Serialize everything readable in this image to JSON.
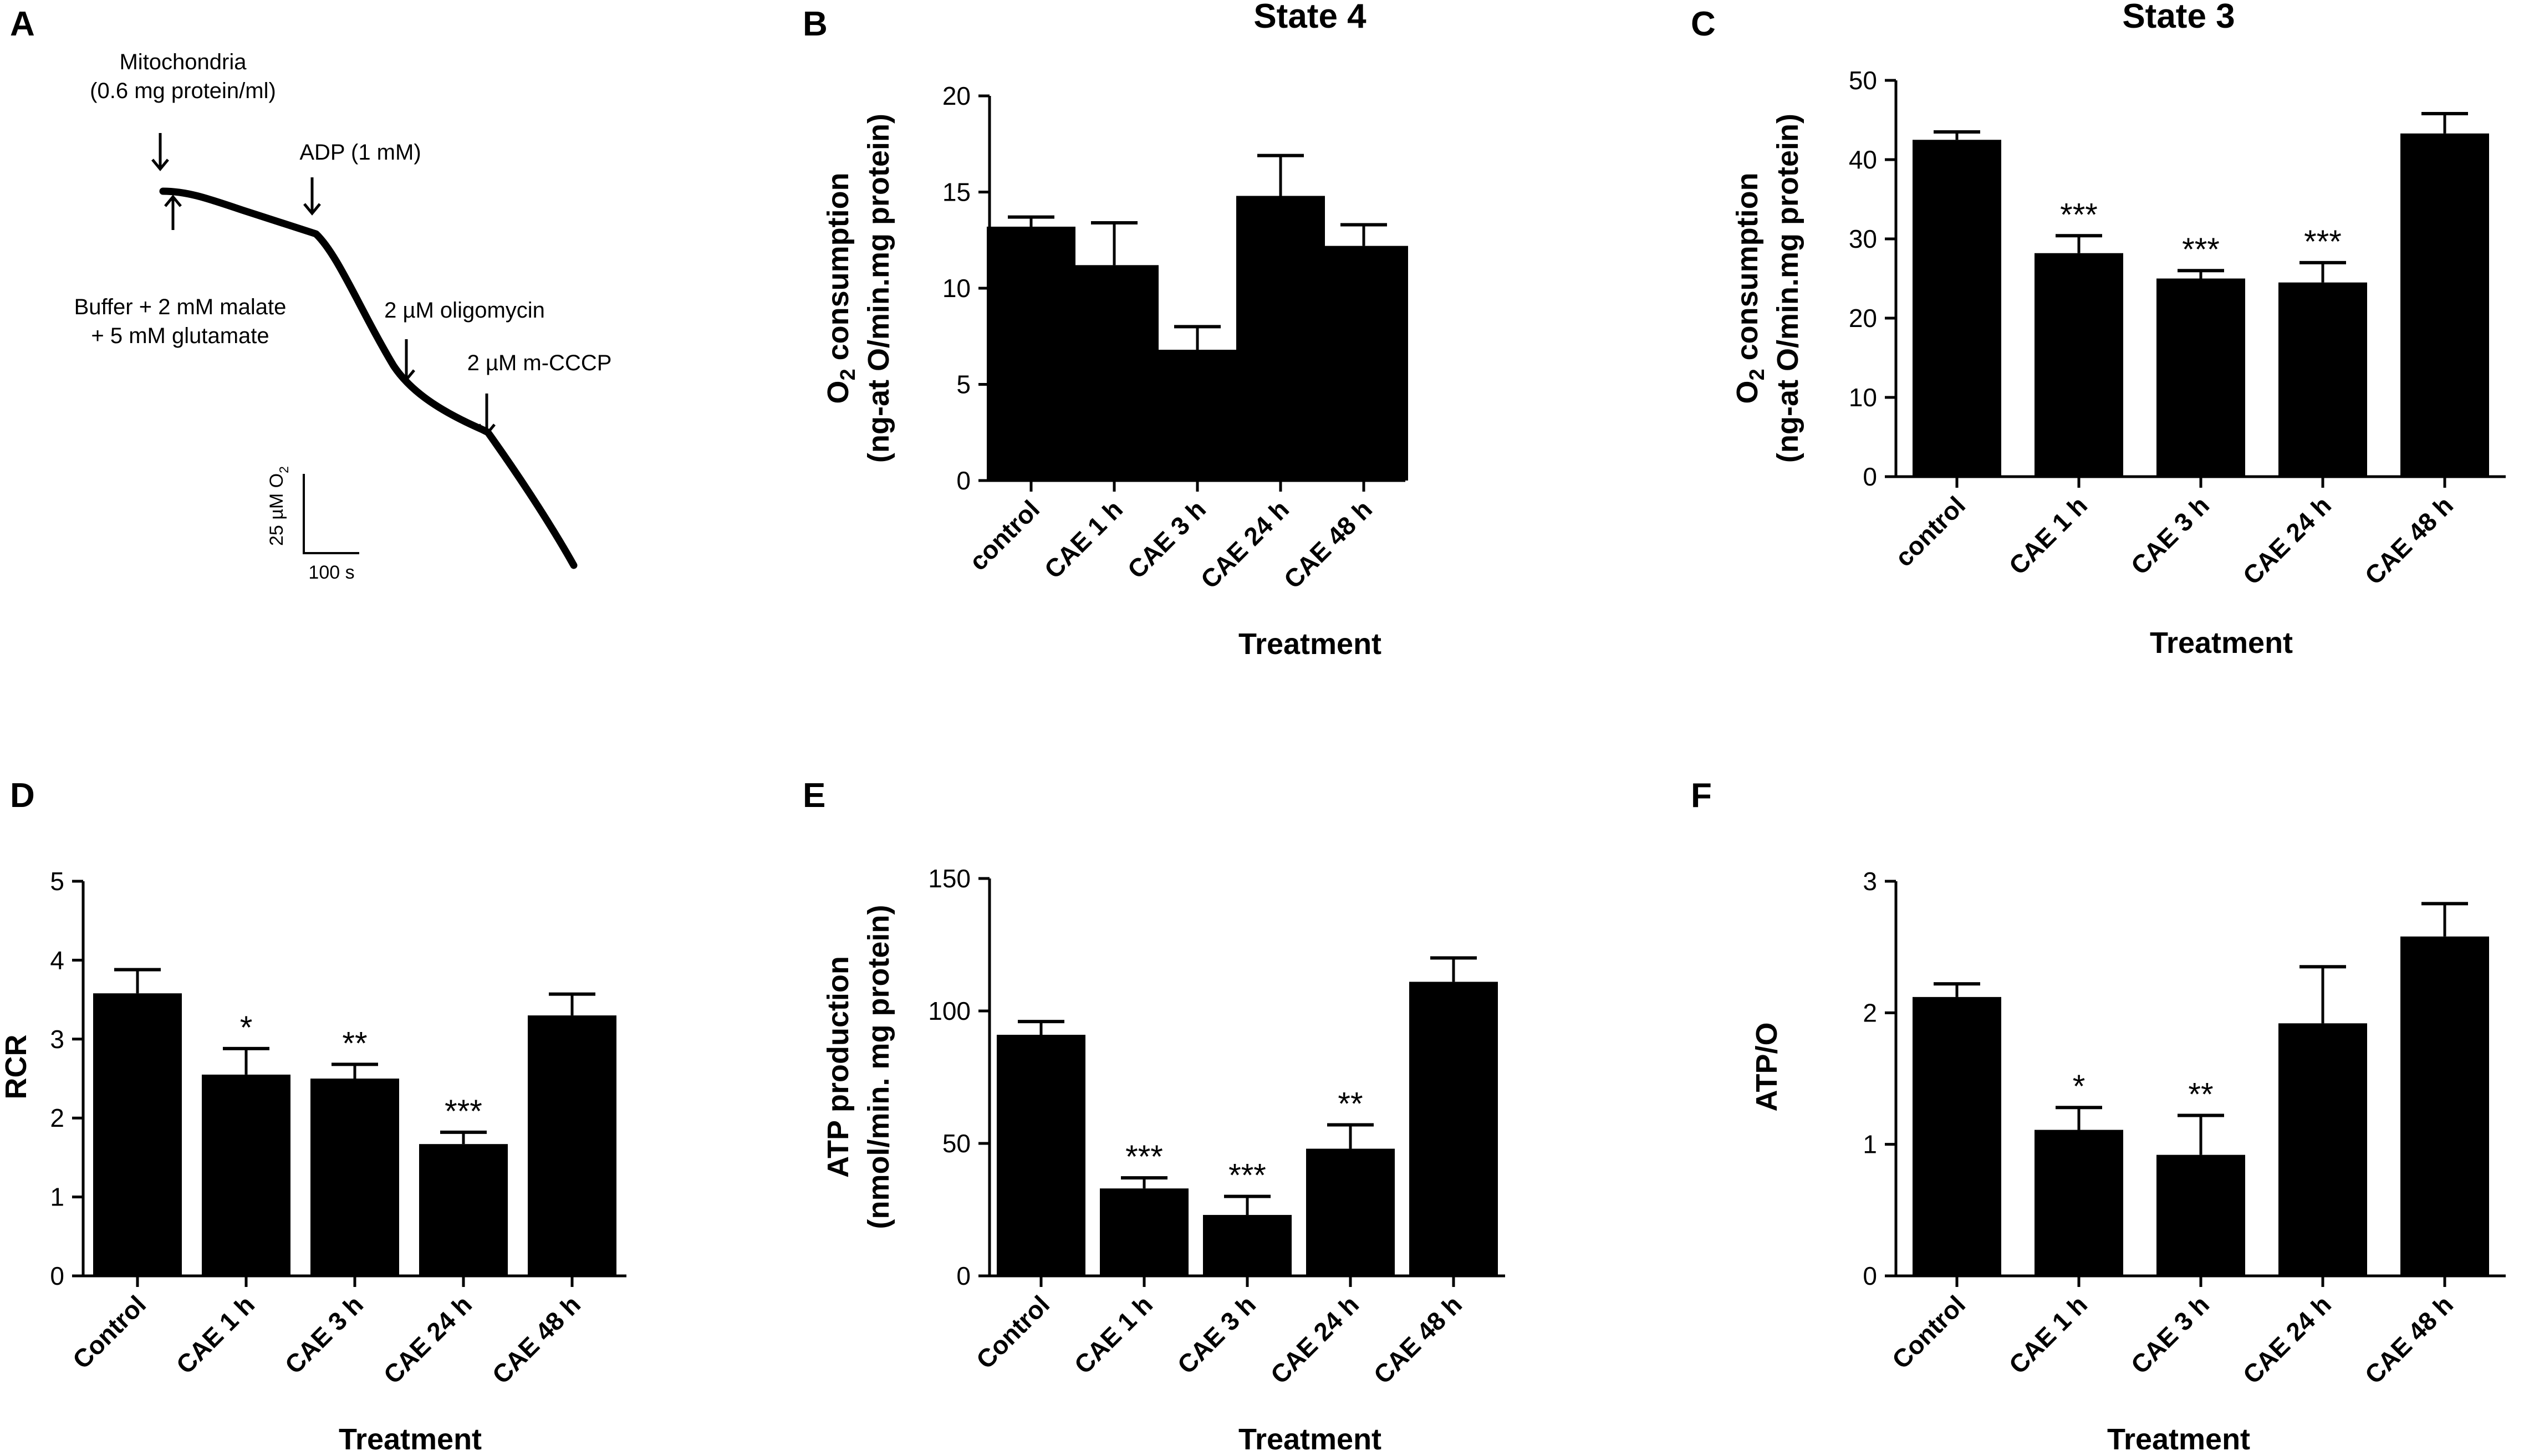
{
  "panel_a": {
    "label": "A",
    "annotations": {
      "mito_line1": "Mitochondria",
      "mito_line2": "(0.6 mg protein/ml)",
      "adp": "ADP (1 mM)",
      "buffer_line1": "Buffer + 2 mM malate",
      "buffer_line2": "+ 5 mM glutamate",
      "oligomycin": "2 µM oligomycin",
      "mcccp": "2 µM m-CCCP"
    },
    "scale_y_label": "25 µM O",
    "scale_y_sub": "2",
    "scale_x_label": "100 s"
  },
  "chart_data": [
    {
      "id": "B",
      "label": "B",
      "type": "bar",
      "title": "State 4",
      "ylabel_lines": [
        "O2 consumption",
        "(ng-at O/min.mg protein)"
      ],
      "xlabel": "Treatment",
      "categories": [
        "control",
        "CAE 1 h",
        "CAE 3 h",
        "CAE 24 h",
        "CAE 48 h"
      ],
      "values": [
        13.2,
        11.2,
        6.8,
        14.8,
        12.2
      ],
      "errors": [
        0.5,
        2.2,
        1.2,
        2.1,
        1.1
      ],
      "significance": [
        "",
        "",
        "",
        "",
        ""
      ],
      "ylim": [
        0,
        20
      ],
      "yticks": [
        0,
        5,
        10,
        15,
        20
      ]
    },
    {
      "id": "C",
      "label": "C",
      "type": "bar",
      "title": "State 3",
      "ylabel_lines": [
        "O2 consumption",
        "(ng-at O/min.mg protein)"
      ],
      "xlabel": "Treatment",
      "categories": [
        "control",
        "CAE 1 h",
        "CAE 3 h",
        "CAE 24 h",
        "CAE 48 h"
      ],
      "values": [
        42.5,
        28.2,
        25.0,
        24.5,
        43.3
      ],
      "errors": [
        1.0,
        2.2,
        1.0,
        2.5,
        2.5
      ],
      "significance": [
        "",
        "***",
        "***",
        "***",
        ""
      ],
      "ylim": [
        0,
        50
      ],
      "yticks": [
        0,
        10,
        20,
        30,
        40,
        50
      ]
    },
    {
      "id": "D",
      "label": "D",
      "type": "bar",
      "title": "",
      "ylabel_lines": [
        "RCR"
      ],
      "xlabel": "Treatment",
      "categories": [
        "Control",
        "CAE 1 h",
        "CAE 3 h",
        "CAE 24 h",
        "CAE 48 h"
      ],
      "values": [
        3.58,
        2.55,
        2.5,
        1.67,
        3.3
      ],
      "errors": [
        0.3,
        0.33,
        0.18,
        0.15,
        0.27
      ],
      "significance": [
        "",
        "*",
        "**",
        "***",
        ""
      ],
      "ylim": [
        0,
        5
      ],
      "yticks": [
        0,
        1,
        2,
        3,
        4,
        5
      ]
    },
    {
      "id": "E",
      "label": "E",
      "type": "bar",
      "title": "",
      "ylabel_lines": [
        "ATP production",
        "(nmol/min. mg protein)"
      ],
      "xlabel": "Treatment",
      "categories": [
        "Control",
        "CAE 1 h",
        "CAE 3 h",
        "CAE 24 h",
        "CAE 48 h"
      ],
      "values": [
        91,
        33,
        23,
        48,
        111
      ],
      "errors": [
        5,
        4,
        7,
        9,
        9
      ],
      "significance": [
        "",
        "***",
        "***",
        "**",
        ""
      ],
      "ylim": [
        0,
        150
      ],
      "yticks": [
        0,
        50,
        100,
        150
      ]
    },
    {
      "id": "F",
      "label": "F",
      "type": "bar",
      "title": "",
      "ylabel_lines": [
        "ATP/O"
      ],
      "xlabel": "Treatment",
      "categories": [
        "Control",
        "CAE 1 h",
        "CAE 3 h",
        "CAE 24 h",
        "CAE 48 h"
      ],
      "values": [
        2.12,
        1.11,
        0.92,
        1.92,
        2.58
      ],
      "errors": [
        0.1,
        0.17,
        0.3,
        0.43,
        0.25
      ],
      "significance": [
        "",
        "*",
        "**",
        "",
        ""
      ],
      "ylim": [
        0,
        3
      ],
      "yticks": [
        0,
        1,
        2,
        3
      ]
    }
  ]
}
